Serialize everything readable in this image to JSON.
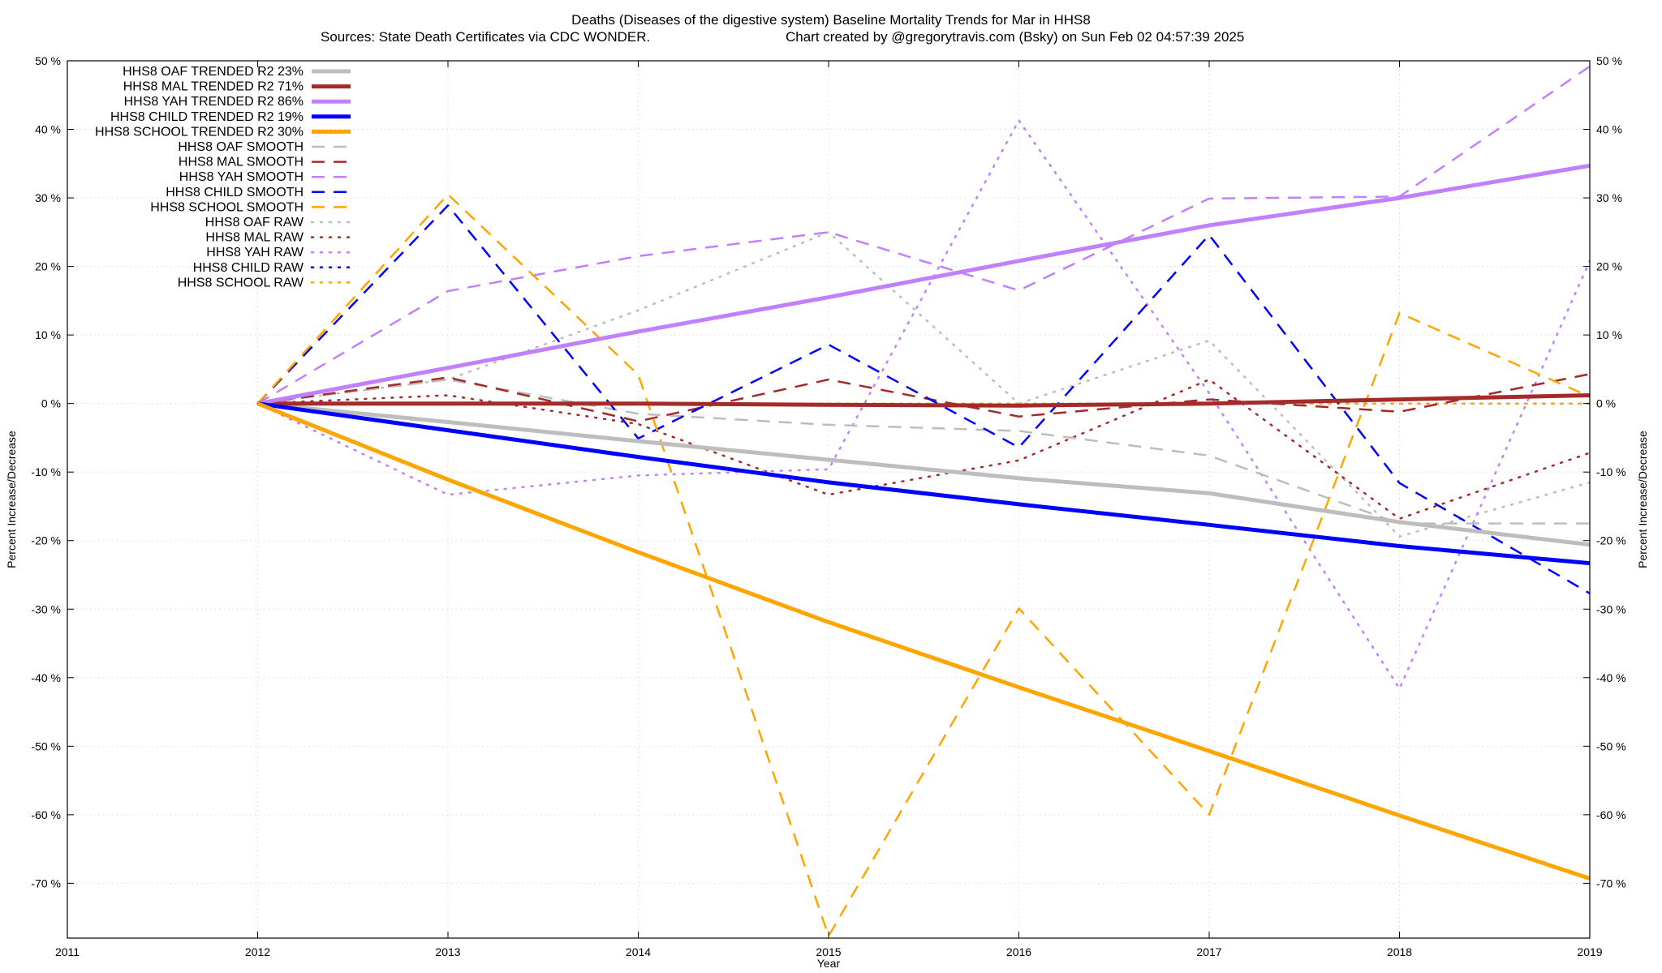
{
  "chart_data": {
    "type": "line",
    "title": "Deaths (Diseases of the digestive system)  Baseline Mortality Trends for Mar in HHS8",
    "subtitle_left": "Sources: State Death Certificates via CDC WONDER.",
    "subtitle_right": "Chart created by @gregorytravis.com (Bsky) on Sun Feb 02 04:57:39 2025",
    "xlabel": "Year",
    "ylabel": "Percent Increase/Decrease",
    "ylabel_right": "Percent Increase/Decrease",
    "xlim": [
      2011,
      2019
    ],
    "ylim": [
      -78,
      50
    ],
    "x_ticks": [
      "2011",
      "2012",
      "2013",
      "2014",
      "2015",
      "2016",
      "2017",
      "2018",
      "2019"
    ],
    "y_ticks": [
      "50 %",
      "40 %",
      "30 %",
      "20 %",
      "10 %",
      "0 %",
      "-10 %",
      "-20 %",
      "-30 %",
      "-40 %",
      "-50 %",
      "-60 %",
      "-70 %"
    ],
    "grid": true,
    "legend_position": "top-left",
    "x": [
      2012,
      2013,
      2014,
      2015,
      2016,
      2017,
      2018,
      2019
    ],
    "series": [
      {
        "name": "HHS8 OAF TRENDED R2  23%",
        "style": "solid",
        "color": "#bdbdbd",
        "values": [
          0,
          -2.7,
          -5.5,
          -8.2,
          -10.9,
          -13.1,
          -17.3,
          -20.6
        ]
      },
      {
        "name": "HHS8 MAL TRENDED R2  71%",
        "style": "solid",
        "color": "#a52a2a",
        "values": [
          0,
          0,
          0,
          -0.2,
          -0.3,
          0,
          0.6,
          1.2
        ]
      },
      {
        "name": "HHS8 YAH TRENDED R2  86%",
        "style": "solid",
        "color": "#c080ff",
        "values": [
          0,
          5.2,
          10.5,
          15.5,
          20.8,
          26,
          30,
          34.7
        ]
      },
      {
        "name": "HHS8 CHILD TRENDED R2  19%",
        "style": "solid",
        "color": "#0000ff",
        "values": [
          0,
          -3.9,
          -7.8,
          -11.5,
          -14.7,
          -17.7,
          -20.8,
          -23.3
        ]
      },
      {
        "name": "HHS8 SCHOOL TRENDED R2  30%",
        "style": "solid",
        "color": "#ffa500",
        "values": [
          0,
          -11.1,
          -21.7,
          -31.9,
          -41.4,
          -50.7,
          -60.1,
          -69.3
        ]
      },
      {
        "name": "HHS8 OAF SMOOTH",
        "style": "dashed",
        "color": "#bdbdbd",
        "values": [
          0,
          3.5,
          -1.5,
          -3.1,
          -4.0,
          -7.6,
          -17.5,
          -17.5
        ]
      },
      {
        "name": "HHS8 MAL SMOOTH",
        "style": "dashed",
        "color": "#a52a2a",
        "values": [
          0,
          3.8,
          -2.6,
          3.5,
          -1.9,
          0.6,
          -1.2,
          4.3
        ]
      },
      {
        "name": "HHS8 YAH SMOOTH",
        "style": "dashed",
        "color": "#c080ff",
        "values": [
          0,
          16.4,
          21.5,
          25.0,
          16.5,
          29.9,
          30.2,
          49.2
        ]
      },
      {
        "name": "HHS8 CHILD SMOOTH",
        "style": "dashed",
        "color": "#0000ff",
        "values": [
          0,
          28.9,
          -5.1,
          8.6,
          -6.4,
          24.6,
          -11.6,
          -27.7
        ]
      },
      {
        "name": "HHS8 SCHOOL SMOOTH",
        "style": "dashed",
        "color": "#ffa500",
        "values": [
          0,
          30.5,
          4.2,
          -77.7,
          -29.9,
          -60.0,
          13.2,
          1.0
        ]
      },
      {
        "name": "HHS8 OAF RAW",
        "style": "dotted",
        "color": "#bdbdbd",
        "values": [
          0,
          3.5,
          13.6,
          25.0,
          0,
          9.2,
          -19.4,
          -11.5
        ]
      },
      {
        "name": "HHS8 MAL RAW",
        "style": "dotted",
        "color": "#a52a2a",
        "values": [
          0,
          1.2,
          -3.0,
          -13.3,
          -8.3,
          3.5,
          -16.8,
          -7.2
        ]
      },
      {
        "name": "HHS8 YAH RAW",
        "style": "dotted",
        "color": "#c080ff",
        "values": [
          0,
          -13.3,
          -10.5,
          -9.6,
          41.3,
          1.5,
          -41.6,
          20.8
        ]
      },
      {
        "name": "HHS8 CHILD RAW",
        "style": "dotted",
        "color": "#0000ff",
        "values": [
          0,
          0,
          0,
          0,
          0,
          0,
          0,
          0
        ]
      },
      {
        "name": "HHS8 SCHOOL RAW",
        "style": "dotted",
        "color": "#ffa500",
        "values": [
          0,
          0,
          0,
          0,
          0,
          0,
          0,
          0
        ]
      }
    ]
  }
}
